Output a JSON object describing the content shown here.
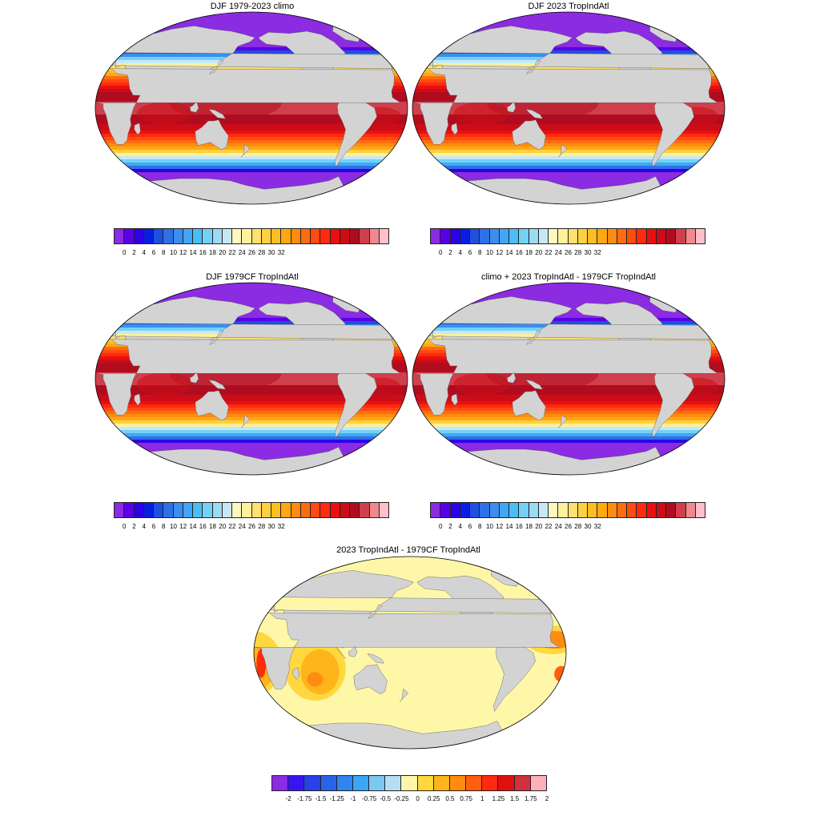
{
  "panels": [
    {
      "title": "DJF 1979-2023 climo",
      "field": "sst"
    },
    {
      "title": "DJF 2023 TropIndAtl",
      "field": "sst"
    },
    {
      "title": "DJF 1979CF TropIndAtl",
      "field": "sst"
    },
    {
      "title": "climo + 2023 TropIndAtl - 1979CF TropIndAtl",
      "field": "sst"
    },
    {
      "title": "2023 TropIndAtl - 1979CF TropIndAtl",
      "field": "anom"
    }
  ],
  "colorbars": {
    "sst": {
      "labels": [
        "0",
        "2",
        "4",
        "6",
        "8",
        "10",
        "12",
        "14",
        "16",
        "18",
        "20",
        "22",
        "24",
        "26",
        "28",
        "30",
        "32"
      ],
      "colors": [
        "#8b2be2",
        "#5a00e6",
        "#2d00e8",
        "#0a1de6",
        "#1e50e0",
        "#2e70e8",
        "#3a8ef0",
        "#42a6f6",
        "#4cbef6",
        "#72d2f6",
        "#9cdcf2",
        "#c6e8f6",
        "#fff7c0",
        "#fff09a",
        "#ffe070",
        "#ffd040",
        "#ffbe20",
        "#ffa812",
        "#ff8c10",
        "#ff6c10",
        "#ff4a10",
        "#ff2a10",
        "#e81010",
        "#cc0c18",
        "#b00c20",
        "#d0404c",
        "#f08890",
        "#ffc0c8"
      ]
    },
    "anom": {
      "labels": [
        "-2",
        "-1.75",
        "-1.5",
        "-1.25",
        "-1",
        "-0.75",
        "-0.5",
        "-0.25",
        "0",
        "0.25",
        "0.5",
        "0.75",
        "1",
        "1.25",
        "1.5",
        "1.75",
        "2"
      ],
      "colors": [
        "#8b2be2",
        "#3a14f0",
        "#2a40e8",
        "#2a64e6",
        "#2e86ee",
        "#3aa6f6",
        "#7cc8f0",
        "#b6def2",
        "#fff7a8",
        "#ffd840",
        "#ffb41a",
        "#ff8c10",
        "#ff6010",
        "#ff2a10",
        "#e01010",
        "#d03040",
        "#ffb0b8"
      ]
    },
    "land_color": "#d3d3d3",
    "coast_color": "#555555"
  }
}
